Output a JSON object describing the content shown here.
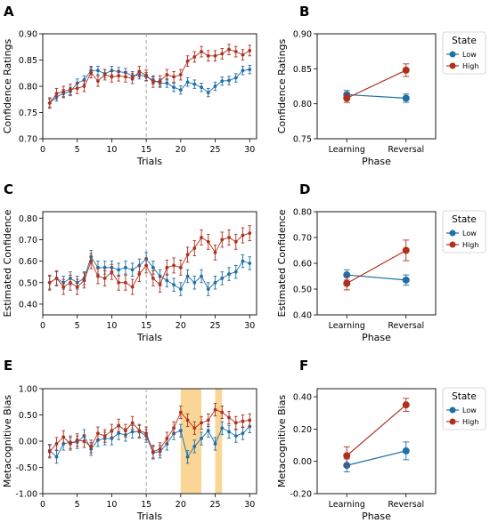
{
  "colors": {
    "low": "#1f6fa8",
    "high": "#b0301c",
    "shade": "#f7c873",
    "vline": "#999999"
  },
  "chart_data": [
    {
      "panel_label": "A",
      "type": "line",
      "xlabel": "Trials",
      "ylabel": "Confidence Ratings",
      "xlim": [
        0,
        31
      ],
      "ylim": [
        0.7,
        0.9
      ],
      "xticks": [
        0,
        5,
        10,
        15,
        20,
        25,
        30
      ],
      "yticks": [
        0.7,
        0.75,
        0.8,
        0.85,
        0.9
      ],
      "ytick_labels": [
        "0.70",
        "0.75",
        "0.80",
        "0.85",
        "0.90"
      ],
      "vline": 15,
      "x": [
        1,
        2,
        3,
        4,
        5,
        6,
        7,
        8,
        9,
        10,
        11,
        12,
        13,
        14,
        15,
        16,
        17,
        18,
        19,
        20,
        21,
        22,
        23,
        24,
        25,
        26,
        27,
        28,
        29,
        30
      ],
      "series": [
        {
          "name": "Low",
          "color": "low",
          "values": [
            0.768,
            0.78,
            0.786,
            0.79,
            0.806,
            0.812,
            0.83,
            0.83,
            0.824,
            0.83,
            0.828,
            0.826,
            0.82,
            0.822,
            0.818,
            0.812,
            0.806,
            0.806,
            0.798,
            0.793,
            0.808,
            0.804,
            0.798,
            0.788,
            0.8,
            0.81,
            0.811,
            0.816,
            0.83,
            0.832
          ],
          "err": 0.008
        },
        {
          "name": "High",
          "color": "high",
          "values": [
            0.768,
            0.786,
            0.79,
            0.794,
            0.796,
            0.8,
            0.826,
            0.81,
            0.822,
            0.818,
            0.82,
            0.818,
            0.815,
            0.828,
            0.821,
            0.808,
            0.81,
            0.822,
            0.818,
            0.822,
            0.848,
            0.856,
            0.866,
            0.858,
            0.858,
            0.862,
            0.87,
            0.866,
            0.86,
            0.868
          ],
          "err": 0.01
        }
      ]
    },
    {
      "panel_label": "B",
      "type": "line",
      "xlabel": "Phase",
      "ylabel": "Confidence Ratings",
      "categories": [
        "Learning",
        "Reversal"
      ],
      "ylim": [
        0.75,
        0.9
      ],
      "yticks": [
        0.75,
        0.8,
        0.85,
        0.9
      ],
      "ytick_labels": [
        "0.75",
        "0.80",
        "0.85",
        "0.90"
      ],
      "legend": {
        "title": "State",
        "entries": [
          "Low",
          "High"
        ],
        "placement": "outside-right"
      },
      "series": [
        {
          "name": "Low",
          "color": "low",
          "values": [
            0.813,
            0.808
          ],
          "err": [
            0.006,
            0.006
          ]
        },
        {
          "name": "High",
          "color": "high",
          "values": [
            0.808,
            0.848
          ],
          "err": [
            0.006,
            0.009
          ]
        }
      ]
    },
    {
      "panel_label": "C",
      "type": "line",
      "xlabel": "Trials",
      "ylabel": "Estimated Confidence",
      "xlim": [
        0,
        31
      ],
      "ylim": [
        0.35,
        0.83
      ],
      "xticks": [
        0,
        5,
        10,
        15,
        20,
        25,
        30
      ],
      "yticks": [
        0.4,
        0.5,
        0.6,
        0.7,
        0.8
      ],
      "ytick_labels": [
        "0.40",
        "0.50",
        "0.60",
        "0.70",
        "0.80"
      ],
      "vline": 15,
      "x": [
        1,
        2,
        3,
        4,
        5,
        6,
        7,
        8,
        9,
        10,
        11,
        12,
        13,
        14,
        15,
        16,
        17,
        18,
        19,
        20,
        21,
        22,
        23,
        24,
        25,
        26,
        27,
        28,
        29,
        30
      ],
      "series": [
        {
          "name": "Low",
          "color": "low",
          "values": [
            0.5,
            0.52,
            0.5,
            0.52,
            0.5,
            0.52,
            0.62,
            0.57,
            0.57,
            0.57,
            0.56,
            0.57,
            0.56,
            0.58,
            0.61,
            0.57,
            0.53,
            0.51,
            0.49,
            0.47,
            0.53,
            0.5,
            0.53,
            0.47,
            0.5,
            0.52,
            0.54,
            0.55,
            0.6,
            0.59
          ],
          "err": 0.03
        },
        {
          "name": "High",
          "color": "high",
          "values": [
            0.5,
            0.52,
            0.48,
            0.5,
            0.48,
            0.51,
            0.6,
            0.53,
            0.52,
            0.55,
            0.5,
            0.5,
            0.48,
            0.54,
            0.58,
            0.52,
            0.49,
            0.57,
            0.58,
            0.57,
            0.63,
            0.66,
            0.71,
            0.69,
            0.64,
            0.7,
            0.71,
            0.69,
            0.72,
            0.73
          ],
          "err": 0.035
        }
      ]
    },
    {
      "panel_label": "D",
      "type": "line",
      "xlabel": "Phase",
      "ylabel": "Estimated Confidence",
      "categories": [
        "Learning",
        "Reversal"
      ],
      "ylim": [
        0.4,
        0.8
      ],
      "yticks": [
        0.4,
        0.5,
        0.6,
        0.7,
        0.8
      ],
      "ytick_labels": [
        "0.40",
        "0.50",
        "0.60",
        "0.70",
        "0.80"
      ],
      "legend": {
        "title": "State",
        "entries": [
          "Low",
          "High"
        ],
        "placement": "top-right"
      },
      "series": [
        {
          "name": "Low",
          "color": "low",
          "values": [
            0.555,
            0.535
          ],
          "err": [
            0.02,
            0.02
          ]
        },
        {
          "name": "High",
          "color": "high",
          "values": [
            0.522,
            0.65
          ],
          "err": [
            0.025,
            0.04
          ]
        }
      ]
    },
    {
      "panel_label": "E",
      "type": "line",
      "xlabel": "Trials",
      "ylabel": "Metacognitive Bias",
      "xlim": [
        0,
        31
      ],
      "ylim": [
        -1.0,
        1.0
      ],
      "xticks": [
        0,
        5,
        10,
        15,
        20,
        25,
        30
      ],
      "yticks": [
        -1.0,
        -0.5,
        0.0,
        0.5,
        1.0
      ],
      "ytick_labels": [
        "-1.00",
        "-0.50",
        "0.00",
        "0.50",
        "1.00"
      ],
      "vline": 15,
      "shaded_x": [
        [
          20,
          23
        ],
        [
          25,
          26
        ]
      ],
      "x": [
        1,
        2,
        3,
        4,
        5,
        6,
        7,
        8,
        9,
        10,
        11,
        12,
        13,
        14,
        15,
        16,
        17,
        18,
        19,
        20,
        21,
        22,
        23,
        24,
        25,
        26,
        27,
        28,
        29,
        30
      ],
      "series": [
        {
          "name": "Low",
          "color": "low",
          "values": [
            -0.18,
            -0.3,
            -0.05,
            -0.02,
            -0.02,
            0.1,
            -0.15,
            0.02,
            0.05,
            0.05,
            0.15,
            0.12,
            0.18,
            0.18,
            0.1,
            -0.22,
            -0.2,
            -0.05,
            0.15,
            0.2,
            -0.3,
            -0.1,
            0.05,
            0.2,
            -0.05,
            0.25,
            0.18,
            0.1,
            0.15,
            0.28
          ],
          "err": 0.12
        },
        {
          "name": "High",
          "color": "high",
          "values": [
            -0.2,
            -0.05,
            0.08,
            -0.05,
            0.02,
            0.0,
            -0.1,
            0.15,
            0.1,
            0.2,
            0.3,
            0.2,
            0.35,
            0.2,
            0.15,
            -0.2,
            -0.15,
            0.05,
            0.25,
            0.55,
            0.4,
            0.25,
            0.35,
            0.4,
            0.6,
            0.55,
            0.45,
            0.35,
            0.38,
            0.4
          ],
          "err": 0.12
        }
      ]
    },
    {
      "panel_label": "F",
      "type": "line",
      "xlabel": "Phase",
      "ylabel": "Metacognitive Bias",
      "categories": [
        "Learning",
        "Reversal"
      ],
      "ylim": [
        -0.2,
        0.45
      ],
      "yticks": [
        -0.2,
        0.0,
        0.2,
        0.4
      ],
      "ytick_labels": [
        "-0.20",
        "0.00",
        "0.20",
        "0.40"
      ],
      "legend": {
        "title": "State",
        "entries": [
          "Low",
          "High"
        ],
        "placement": "outside-right"
      },
      "series": [
        {
          "name": "Low",
          "color": "low",
          "values": [
            -0.025,
            0.065
          ],
          "err": [
            0.04,
            0.055
          ]
        },
        {
          "name": "High",
          "color": "high",
          "values": [
            0.035,
            0.35
          ],
          "err": [
            0.055,
            0.04
          ]
        }
      ]
    }
  ]
}
